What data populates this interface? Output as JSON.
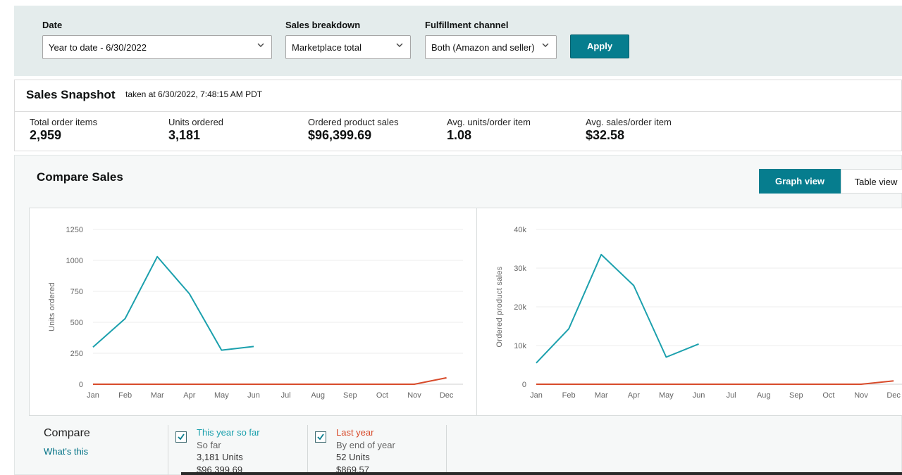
{
  "filters": {
    "date": {
      "label": "Date",
      "value": "Year to date - 6/30/2022"
    },
    "sales_breakdown": {
      "label": "Sales breakdown",
      "value": "Marketplace total"
    },
    "fulfillment": {
      "label": "Fulfillment channel",
      "value": "Both (Amazon and seller)"
    },
    "apply_label": "Apply"
  },
  "snapshot": {
    "title": "Sales Snapshot",
    "taken": "taken at 6/30/2022, 7:48:15 AM PDT",
    "metrics": [
      {
        "label": "Total order items",
        "value": "2,959"
      },
      {
        "label": "Units ordered",
        "value": "3,181"
      },
      {
        "label": "Ordered product sales",
        "value": "$96,399.69"
      },
      {
        "label": "Avg. units/order item",
        "value": "1.08"
      },
      {
        "label": "Avg. sales/order item",
        "value": "$32.58"
      }
    ]
  },
  "compare": {
    "title": "Compare Sales",
    "graph_view_label": "Graph view",
    "table_view_label": "Table view",
    "legend": {
      "title": "Compare",
      "whats_this": "What's this",
      "items": [
        {
          "name": "This year so far",
          "sub": "So far",
          "units": "3,181 Units",
          "sales": "$96,399.69"
        },
        {
          "name": "Last year",
          "sub": "By end of year",
          "units": "52 Units",
          "sales": "$869.57"
        }
      ]
    }
  },
  "colors": {
    "accent": "#067d8e",
    "this_year": "#1ba0ad",
    "last_year": "#d84b2b"
  },
  "chart_data": [
    {
      "type": "line",
      "ylabel": "Units ordered",
      "categories": [
        "Jan",
        "Feb",
        "Mar",
        "Apr",
        "May",
        "Jun",
        "Jul",
        "Aug",
        "Sep",
        "Oct",
        "Nov",
        "Dec"
      ],
      "yticks": [
        "0",
        "250",
        "500",
        "750",
        "1000",
        "1250"
      ],
      "ylim": [
        0,
        1250
      ],
      "grid": true,
      "series": [
        {
          "name": "This year so far",
          "values": [
            300,
            530,
            1030,
            730,
            275,
            305,
            null,
            null,
            null,
            null,
            null,
            null
          ]
        },
        {
          "name": "Last year",
          "values": [
            0,
            0,
            0,
            0,
            0,
            0,
            0,
            0,
            0,
            0,
            0,
            52
          ]
        }
      ]
    },
    {
      "type": "line",
      "ylabel": "Ordered product sales",
      "categories": [
        "Jan",
        "Feb",
        "Mar",
        "Apr",
        "May",
        "Jun",
        "Jul",
        "Aug",
        "Sep",
        "Oct",
        "Nov",
        "Dec"
      ],
      "yticks": [
        "0",
        "10k",
        "20k",
        "30k",
        "40k"
      ],
      "ylim": [
        0,
        40000
      ],
      "grid": true,
      "series": [
        {
          "name": "This year so far",
          "values": [
            5500,
            14300,
            33500,
            25500,
            7000,
            10400,
            null,
            null,
            null,
            null,
            null,
            null
          ]
        },
        {
          "name": "Last year",
          "values": [
            0,
            0,
            0,
            0,
            0,
            0,
            0,
            0,
            0,
            0,
            0,
            870
          ]
        }
      ]
    }
  ]
}
